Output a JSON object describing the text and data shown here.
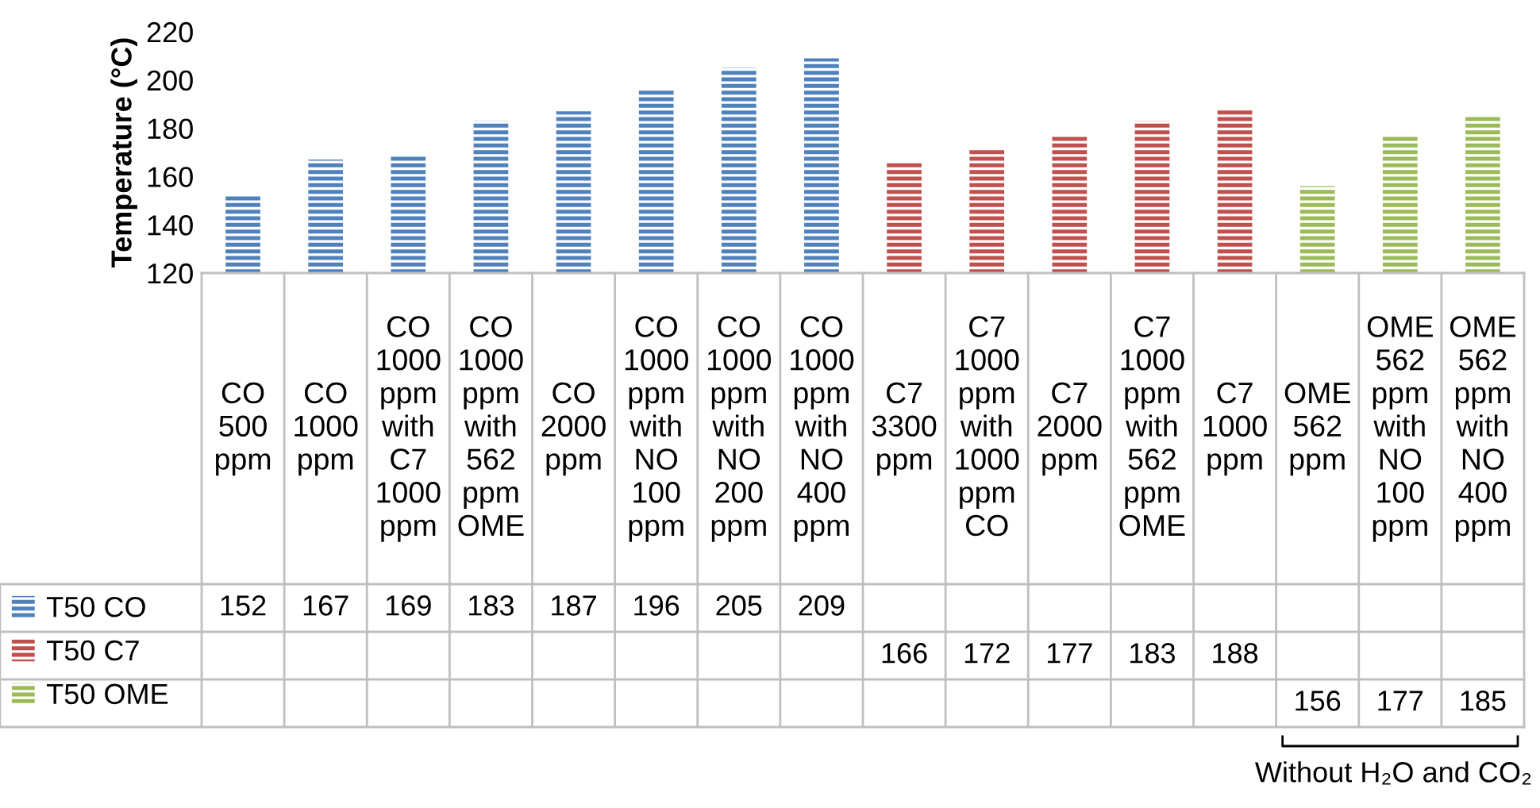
{
  "chart_data": {
    "type": "bar",
    "ylabel": "Temperature (°C)",
    "ylim": [
      120,
      220
    ],
    "yticks": [
      120,
      140,
      160,
      180,
      200,
      220
    ],
    "grid": false,
    "legend": "bottom left",
    "data_labels": true,
    "categories": [
      "CO 500 ppm",
      "CO 1000 ppm",
      "CO 1000 ppm with C7 1000 ppm",
      "CO 1000 ppm with 562 ppm OME",
      "CO 2000 ppm",
      "CO 1000 ppm with NO 100 ppm",
      "CO 1000 ppm with NO 200 ppm",
      "CO 1000 ppm with NO 400 ppm",
      "C7 3300 ppm",
      "C7 1000 ppm with 1000 ppm CO",
      "C7 2000 ppm",
      "C7 1000 ppm with 562 ppm OME",
      "C7 1000 ppm",
      "OME 562 ppm",
      "OME 562 ppm with NO 100 ppm",
      "OME 562 ppm with NO 400 ppm"
    ],
    "series": [
      {
        "name": "T50 CO",
        "color": "#4f81bd",
        "values": [
          152,
          167,
          169,
          183,
          187,
          196,
          205,
          209,
          null,
          null,
          null,
          null,
          null,
          null,
          null,
          null
        ]
      },
      {
        "name": "T50 C7",
        "color": "#c0504d",
        "values": [
          null,
          null,
          null,
          null,
          null,
          null,
          null,
          null,
          166,
          172,
          177,
          183,
          188,
          null,
          null,
          null
        ]
      },
      {
        "name": "T50 OME",
        "color": "#9bbb59",
        "values": [
          null,
          null,
          null,
          null,
          null,
          null,
          null,
          null,
          null,
          null,
          null,
          null,
          null,
          156,
          177,
          185
        ]
      }
    ],
    "annotations": [
      "Without H₂O and CO₂"
    ]
  }
}
